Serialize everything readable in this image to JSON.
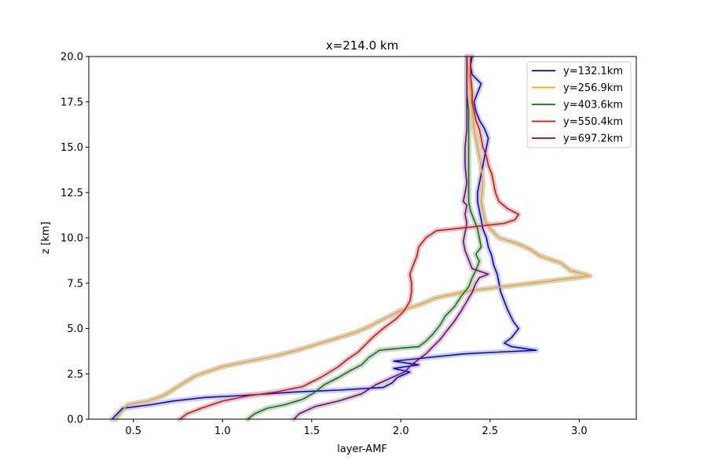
{
  "chart_data": {
    "type": "line",
    "orientation": "vertical-profile",
    "title": "x=214.0 km",
    "xlabel": "layer-AMF",
    "ylabel": "z [km]",
    "xlim": [
      0.25,
      3.32
    ],
    "ylim": [
      0,
      20
    ],
    "xticks": [
      "0.5",
      "1.0",
      "1.5",
      "2.0",
      "2.5",
      "3.0"
    ],
    "yticks": [
      "0.0",
      "2.5",
      "5.0",
      "7.5",
      "10.0",
      "12.5",
      "15.0",
      "17.5",
      "20.0"
    ],
    "grid": false,
    "legend": "top-right",
    "uncertainty_band_color": "#c8c8c8",
    "series": [
      {
        "name": "y=132.1km",
        "color": "#0000ff",
        "points": [
          [
            0.38,
            0
          ],
          [
            0.41,
            0.3
          ],
          [
            0.44,
            0.6
          ],
          [
            0.6,
            0.8
          ],
          [
            0.72,
            1.0
          ],
          [
            0.9,
            1.2
          ],
          [
            1.1,
            1.3
          ],
          [
            1.4,
            1.5
          ],
          [
            1.65,
            1.6
          ],
          [
            1.9,
            1.75
          ],
          [
            1.95,
            2.0
          ],
          [
            1.98,
            2.3
          ],
          [
            2.05,
            2.6
          ],
          [
            1.96,
            2.8
          ],
          [
            2.1,
            3.0
          ],
          [
            1.96,
            3.2
          ],
          [
            2.15,
            3.4
          ],
          [
            2.35,
            3.6
          ],
          [
            2.55,
            3.7
          ],
          [
            2.76,
            3.8
          ],
          [
            2.62,
            4.0
          ],
          [
            2.58,
            4.2
          ],
          [
            2.62,
            4.5
          ],
          [
            2.66,
            5.0
          ],
          [
            2.63,
            5.4
          ],
          [
            2.6,
            6.0
          ],
          [
            2.58,
            6.5
          ],
          [
            2.56,
            7.0
          ],
          [
            2.55,
            7.5
          ],
          [
            2.54,
            8.0
          ],
          [
            2.52,
            8.5
          ],
          [
            2.51,
            9.0
          ],
          [
            2.49,
            9.5
          ],
          [
            2.48,
            10.0
          ],
          [
            2.46,
            10.5
          ],
          [
            2.45,
            11.0
          ],
          [
            2.44,
            11.5
          ],
          [
            2.43,
            12.0
          ],
          [
            2.43,
            12.5
          ],
          [
            2.44,
            13.0
          ],
          [
            2.45,
            13.5
          ],
          [
            2.46,
            14.0
          ],
          [
            2.47,
            14.5
          ],
          [
            2.48,
            15.0
          ],
          [
            2.49,
            15.5
          ],
          [
            2.47,
            16.0
          ],
          [
            2.44,
            16.5
          ],
          [
            2.42,
            17.0
          ],
          [
            2.41,
            17.5
          ],
          [
            2.43,
            18.0
          ],
          [
            2.45,
            18.5
          ],
          [
            2.4,
            19.0
          ],
          [
            2.39,
            19.5
          ],
          [
            2.4,
            20.0
          ]
        ]
      },
      {
        "name": "y=256.9km",
        "color": "#ffa500",
        "points": [
          [
            0.4,
            0
          ],
          [
            0.43,
            0.4
          ],
          [
            0.47,
            0.8
          ],
          [
            0.58,
            1.0
          ],
          [
            0.67,
            1.3
          ],
          [
            0.75,
            1.8
          ],
          [
            0.85,
            2.4
          ],
          [
            1.0,
            2.9
          ],
          [
            1.15,
            3.2
          ],
          [
            1.3,
            3.5
          ],
          [
            1.42,
            3.8
          ],
          [
            1.52,
            4.1
          ],
          [
            1.62,
            4.4
          ],
          [
            1.75,
            4.8
          ],
          [
            1.82,
            5.1
          ],
          [
            1.9,
            5.5
          ],
          [
            2.0,
            6.0
          ],
          [
            2.1,
            6.3
          ],
          [
            2.2,
            6.7
          ],
          [
            2.4,
            7.1
          ],
          [
            2.65,
            7.4
          ],
          [
            2.9,
            7.7
          ],
          [
            3.06,
            7.9
          ],
          [
            2.95,
            8.2
          ],
          [
            2.9,
            8.6
          ],
          [
            2.78,
            9.0
          ],
          [
            2.72,
            9.4
          ],
          [
            2.65,
            9.7
          ],
          [
            2.55,
            10.0
          ],
          [
            2.5,
            10.5
          ],
          [
            2.47,
            11.0
          ],
          [
            2.45,
            12.0
          ],
          [
            2.46,
            13.0
          ],
          [
            2.45,
            14.0
          ],
          [
            2.43,
            15.0
          ],
          [
            2.41,
            16.0
          ],
          [
            2.4,
            17.0
          ],
          [
            2.39,
            18.0
          ],
          [
            2.38,
            19.0
          ],
          [
            2.37,
            20.0
          ]
        ]
      },
      {
        "name": "y=403.6km",
        "color": "#008000",
        "points": [
          [
            1.14,
            0
          ],
          [
            1.18,
            0.3
          ],
          [
            1.25,
            0.6
          ],
          [
            1.35,
            0.8
          ],
          [
            1.45,
            1.1
          ],
          [
            1.52,
            1.5
          ],
          [
            1.57,
            1.9
          ],
          [
            1.65,
            2.3
          ],
          [
            1.72,
            2.7
          ],
          [
            1.78,
            3.0
          ],
          [
            1.82,
            3.4
          ],
          [
            1.88,
            3.8
          ],
          [
            1.98,
            3.9
          ],
          [
            2.1,
            4.0
          ],
          [
            2.14,
            4.3
          ],
          [
            2.18,
            4.7
          ],
          [
            2.22,
            5.2
          ],
          [
            2.25,
            5.7
          ],
          [
            2.3,
            6.2
          ],
          [
            2.34,
            6.8
          ],
          [
            2.38,
            7.3
          ],
          [
            2.4,
            7.8
          ],
          [
            2.42,
            8.2
          ],
          [
            2.44,
            8.7
          ],
          [
            2.42,
            9.1
          ],
          [
            2.45,
            9.5
          ],
          [
            2.44,
            10.0
          ],
          [
            2.43,
            10.5
          ],
          [
            2.41,
            11.0
          ],
          [
            2.39,
            11.5
          ],
          [
            2.38,
            12.0
          ],
          [
            2.38,
            13.0
          ],
          [
            2.38,
            14.0
          ],
          [
            2.38,
            15.0
          ],
          [
            2.38,
            16.0
          ],
          [
            2.38,
            17.0
          ],
          [
            2.37,
            18.0
          ],
          [
            2.37,
            19.0
          ],
          [
            2.37,
            20.0
          ]
        ]
      },
      {
        "name": "y=550.4km",
        "color": "#ff0000",
        "points": [
          [
            0.76,
            0
          ],
          [
            0.8,
            0.3
          ],
          [
            0.88,
            0.6
          ],
          [
            1.0,
            1.0
          ],
          [
            1.15,
            1.3
          ],
          [
            1.3,
            1.5
          ],
          [
            1.45,
            1.8
          ],
          [
            1.55,
            2.3
          ],
          [
            1.6,
            2.6
          ],
          [
            1.65,
            2.9
          ],
          [
            1.7,
            3.3
          ],
          [
            1.76,
            3.7
          ],
          [
            1.8,
            4.1
          ],
          [
            1.84,
            4.5
          ],
          [
            1.9,
            5.0
          ],
          [
            1.97,
            5.5
          ],
          [
            2.02,
            6.0
          ],
          [
            2.05,
            6.5
          ],
          [
            2.06,
            7.0
          ],
          [
            2.06,
            7.5
          ],
          [
            2.05,
            8.0
          ],
          [
            2.07,
            8.5
          ],
          [
            2.09,
            9.0
          ],
          [
            2.1,
            9.5
          ],
          [
            2.14,
            10.0
          ],
          [
            2.2,
            10.4
          ],
          [
            2.4,
            10.6
          ],
          [
            2.58,
            10.8
          ],
          [
            2.64,
            11.0
          ],
          [
            2.66,
            11.3
          ],
          [
            2.6,
            11.6
          ],
          [
            2.55,
            12.0
          ],
          [
            2.53,
            12.5
          ],
          [
            2.52,
            13.0
          ],
          [
            2.51,
            13.5
          ],
          [
            2.49,
            14.0
          ],
          [
            2.48,
            14.5
          ],
          [
            2.46,
            15.0
          ],
          [
            2.45,
            15.5
          ],
          [
            2.44,
            16.0
          ],
          [
            2.42,
            16.5
          ],
          [
            2.41,
            17.0
          ],
          [
            2.4,
            17.5
          ],
          [
            2.4,
            18.0
          ],
          [
            2.39,
            19.0
          ],
          [
            2.39,
            20.0
          ]
        ]
      },
      {
        "name": "y=697.2km",
        "color": "#800080",
        "points": [
          [
            1.4,
            0
          ],
          [
            1.43,
            0.3
          ],
          [
            1.52,
            0.7
          ],
          [
            1.65,
            1.0
          ],
          [
            1.78,
            1.4
          ],
          [
            1.86,
            1.9
          ],
          [
            1.95,
            2.3
          ],
          [
            2.02,
            2.6
          ],
          [
            2.06,
            3.0
          ],
          [
            2.1,
            3.3
          ],
          [
            2.14,
            3.6
          ],
          [
            2.18,
            4.0
          ],
          [
            2.22,
            4.4
          ],
          [
            2.26,
            4.9
          ],
          [
            2.3,
            5.4
          ],
          [
            2.34,
            6.0
          ],
          [
            2.37,
            6.5
          ],
          [
            2.4,
            7.0
          ],
          [
            2.42,
            7.5
          ],
          [
            2.44,
            7.8
          ],
          [
            2.49,
            8.0
          ],
          [
            2.4,
            8.3
          ],
          [
            2.38,
            8.8
          ],
          [
            2.36,
            9.3
          ],
          [
            2.35,
            9.8
          ],
          [
            2.36,
            10.3
          ],
          [
            2.37,
            10.8
          ],
          [
            2.36,
            11.3
          ],
          [
            2.37,
            11.8
          ],
          [
            2.35,
            12.0
          ],
          [
            2.36,
            12.5
          ],
          [
            2.37,
            13.0
          ],
          [
            2.36,
            14.0
          ],
          [
            2.36,
            15.0
          ],
          [
            2.37,
            16.0
          ],
          [
            2.37,
            17.0
          ],
          [
            2.37,
            18.0
          ],
          [
            2.37,
            19.0
          ],
          [
            2.37,
            20.0
          ]
        ]
      }
    ]
  }
}
